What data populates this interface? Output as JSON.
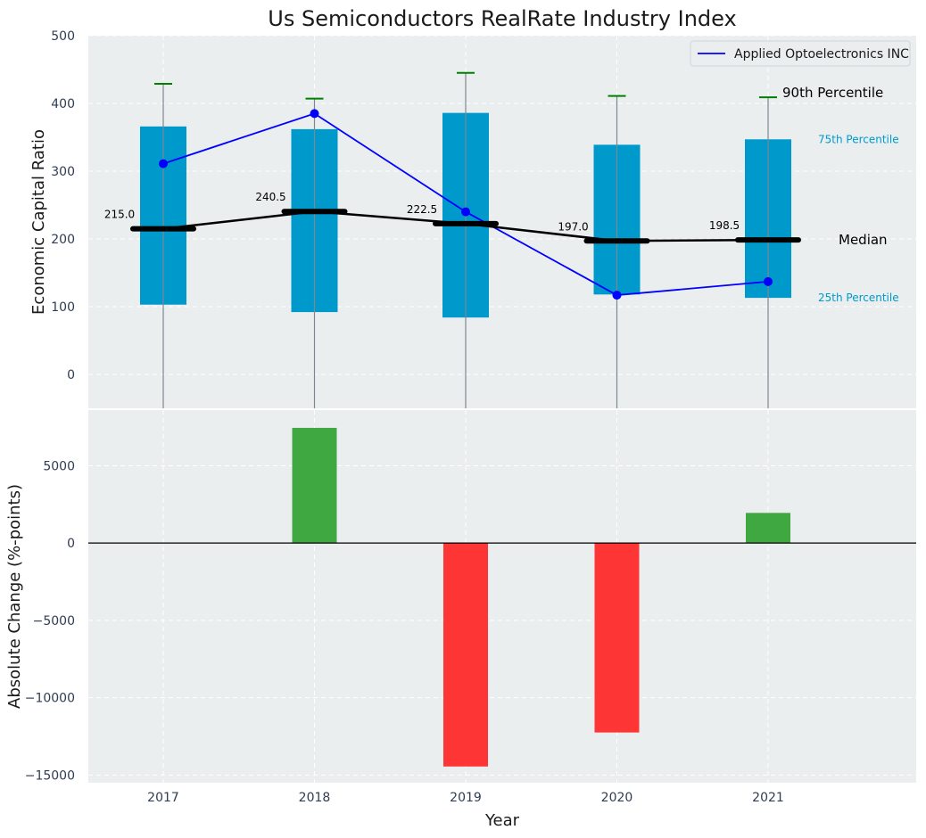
{
  "chart_data": [
    {
      "type": "box",
      "title": "Us Semiconductors RealRate Industry Index",
      "xlabel": "",
      "ylabel": "Economic Capital Ratio",
      "ylim": [
        -50,
        500
      ],
      "yticks": [
        0,
        100,
        200,
        300,
        400,
        500
      ],
      "categories": [
        "2017",
        "2018",
        "2019",
        "2020",
        "2021"
      ],
      "p25": [
        103,
        92,
        84,
        118,
        113
      ],
      "p75": [
        366,
        362,
        386,
        339,
        347
      ],
      "p90": [
        429,
        407,
        445,
        411,
        409
      ],
      "median": [
        215.0,
        240.5,
        222.5,
        197.0,
        198.5
      ],
      "median_labels": [
        "215.0",
        "240.5",
        "222.5",
        "197.0",
        "198.5"
      ],
      "series": [
        {
          "name": "Applied Optoelectronics INC",
          "values": [
            311,
            385,
            240,
            117,
            137
          ]
        }
      ],
      "annotations": {
        "p90": "90th Percentile",
        "p75": "75th Percentile",
        "median": "Median",
        "p25": "25th Percentile"
      },
      "legend": "top-right",
      "grid": true,
      "colors": {
        "box": "#0099cc",
        "series": "#0000ff",
        "median": "#000000",
        "whisker": "#008000",
        "background": "#eaeeef"
      }
    },
    {
      "type": "bar",
      "xlabel": "Year",
      "ylabel": "Absolute Change (%-points)",
      "ylim": [
        -15500,
        8600
      ],
      "yticks": [
        -15000,
        -10000,
        -5000,
        0,
        5000
      ],
      "ytick_labels": [
        "−15000",
        "−10000",
        "−5000",
        "0",
        "5000"
      ],
      "categories": [
        "2017",
        "2018",
        "2019",
        "2020",
        "2021"
      ],
      "values": [
        0,
        7450,
        -14450,
        -12250,
        1950
      ],
      "grid": true,
      "colors": {
        "positive": "#2ca02c",
        "negative": "#ff2020"
      }
    }
  ]
}
